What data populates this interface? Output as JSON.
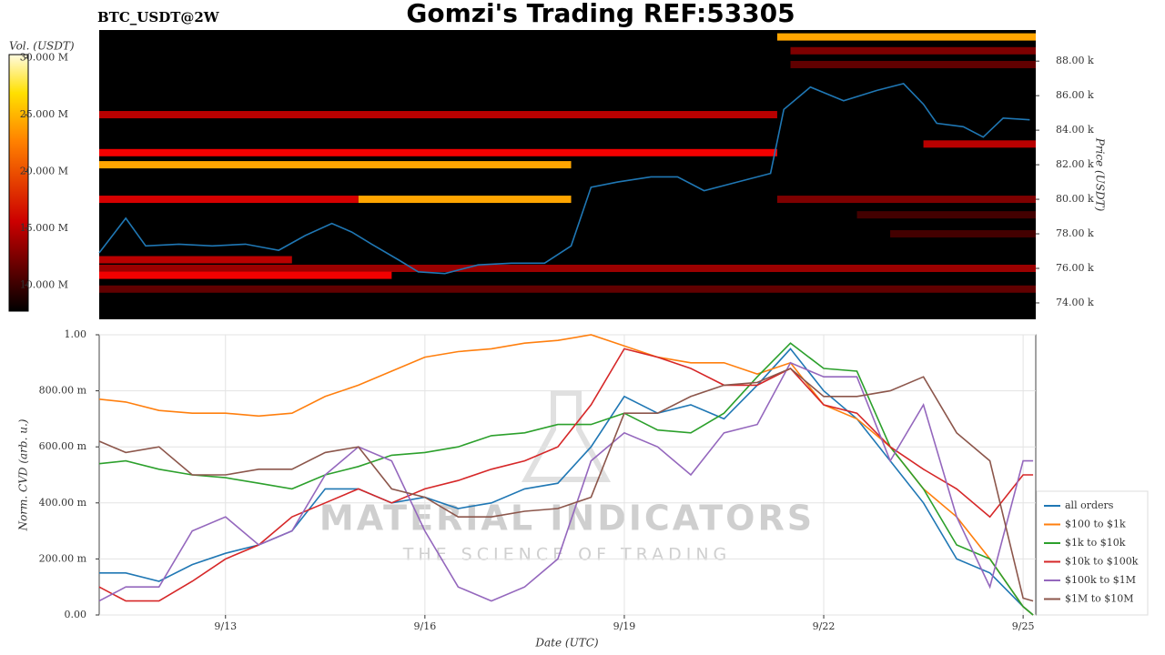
{
  "title": "Gomzi's Trading REF:53305",
  "watermark": {
    "name": "MATERIAL INDICATORS",
    "tagline": "THE SCIENCE OF TRADING"
  },
  "chart_data": [
    {
      "type": "heatmap",
      "title": "BTC_USDT@2W",
      "y_label": "Price (USDT)",
      "colorbar_label": "Vol. (USDT)",
      "xlim": [
        11.1,
        25.19
      ],
      "ylim": [
        73050,
        89800
      ],
      "yticks": [
        {
          "value": 74000,
          "label": "74.00 k"
        },
        {
          "value": 76000,
          "label": "76.00 k"
        },
        {
          "value": 78000,
          "label": "78.00 k"
        },
        {
          "value": 80000,
          "label": "80.00 k"
        },
        {
          "value": 82000,
          "label": "82.00 k"
        },
        {
          "value": 84000,
          "label": "84.00 k"
        },
        {
          "value": 86000,
          "label": "86.00 k"
        },
        {
          "value": 88000,
          "label": "88.00 k"
        }
      ],
      "colorbar_lim": [
        7.7,
        30.3
      ],
      "colorbar_ticks": [
        {
          "value": 10,
          "label": "10.000 M"
        },
        {
          "value": 15,
          "label": "15.000 M"
        },
        {
          "value": 20,
          "label": "20.000 M"
        },
        {
          "value": 25,
          "label": "25.000 M"
        },
        {
          "value": 30,
          "label": "30.000 M"
        }
      ],
      "levels": [
        {
          "price": 84900,
          "start": 11.1,
          "end": 21.3,
          "value": 14
        },
        {
          "price": 82700,
          "start": 11.1,
          "end": 21.3,
          "value": 16
        },
        {
          "price": 82000,
          "start": 11.1,
          "end": 18.2,
          "value": 22
        },
        {
          "price": 80000,
          "start": 11.1,
          "end": 15.0,
          "value": 15
        },
        {
          "price": 80000,
          "start": 15.0,
          "end": 18.2,
          "value": 22
        },
        {
          "price": 76500,
          "start": 11.1,
          "end": 14.0,
          "value": 14
        },
        {
          "price": 76000,
          "start": 11.1,
          "end": 25.19,
          "value": 13
        },
        {
          "price": 75600,
          "start": 11.1,
          "end": 15.5,
          "value": 16
        },
        {
          "price": 74800,
          "start": 11.1,
          "end": 25.19,
          "value": 11
        },
        {
          "price": 89400,
          "start": 21.3,
          "end": 25.19,
          "value": 22
        },
        {
          "price": 88600,
          "start": 21.5,
          "end": 25.19,
          "value": 12
        },
        {
          "price": 87800,
          "start": 21.5,
          "end": 25.19,
          "value": 11
        },
        {
          "price": 83200,
          "start": 23.5,
          "end": 25.19,
          "value": 14
        },
        {
          "price": 80000,
          "start": 21.3,
          "end": 25.19,
          "value": 12
        },
        {
          "price": 79100,
          "start": 22.5,
          "end": 25.19,
          "value": 10
        },
        {
          "price": 78000,
          "start": 23.0,
          "end": 25.19,
          "value": 10
        }
      ],
      "x": [
        11.1,
        11.5,
        11.8,
        12.3,
        12.8,
        13.3,
        13.8,
        14.2,
        14.6,
        14.9,
        15.2,
        15.6,
        15.9,
        16.3,
        16.8,
        17.3,
        17.8,
        18.2,
        18.5,
        18.9,
        19.4,
        19.8,
        20.2,
        20.7,
        21.2,
        21.4,
        21.8,
        22.3,
        22.8,
        23.2,
        23.5,
        23.7,
        24.1,
        24.4,
        24.7,
        25.1
      ],
      "series": [
        {
          "color": "#1f77b4",
          "values": [
            76900,
            78900,
            77300,
            77400,
            77300,
            77400,
            77050,
            77900,
            78600,
            78100,
            77400,
            76500,
            75800,
            75700,
            76200,
            76300,
            76300,
            77300,
            80700,
            81000,
            81300,
            81300,
            80500,
            81000,
            81500,
            85200,
            86500,
            85700,
            86300,
            86700,
            85500,
            84400,
            84200,
            83600,
            84700,
            84600
          ]
        }
      ]
    },
    {
      "type": "line",
      "x_label": "Date (UTC)",
      "y_label": "Norm. CVD (arb. u.)",
      "xlim": [
        11.1,
        25.19
      ],
      "ylim": [
        0,
        1
      ],
      "xticks": [
        {
          "value": 13,
          "label": "9/13"
        },
        {
          "value": 16,
          "label": "9/16"
        },
        {
          "value": 19,
          "label": "9/19"
        },
        {
          "value": 22,
          "label": "9/22"
        },
        {
          "value": 25,
          "label": "9/25"
        }
      ],
      "yticks": [
        {
          "value": 0,
          "label": "0.00"
        },
        {
          "value": 0.2,
          "label": "200.00 m"
        },
        {
          "value": 0.4,
          "label": "400.00 m"
        },
        {
          "value": 0.6,
          "label": "600.00 m"
        },
        {
          "value": 0.8,
          "label": "800.00 m"
        },
        {
          "value": 1,
          "label": "1.00"
        }
      ],
      "grid": true,
      "legend": "right",
      "x": [
        11.1,
        11.5,
        12,
        12.5,
        13,
        13.5,
        14,
        14.5,
        15,
        15.5,
        16,
        16.5,
        17,
        17.5,
        18,
        18.5,
        19,
        19.5,
        20,
        20.5,
        21,
        21.5,
        22,
        22.5,
        23,
        23.5,
        24,
        24.5,
        25,
        25.15
      ],
      "series": [
        {
          "name": "all orders",
          "color": "#1f77b4",
          "values": [
            0.15,
            0.15,
            0.12,
            0.18,
            0.22,
            0.25,
            0.3,
            0.45,
            0.45,
            0.4,
            0.42,
            0.38,
            0.4,
            0.45,
            0.47,
            0.6,
            0.78,
            0.72,
            0.75,
            0.7,
            0.82,
            0.95,
            0.8,
            0.7,
            0.55,
            0.4,
            0.2,
            0.15,
            0.03,
            0.0
          ]
        },
        {
          "name": "$100 to $1k",
          "color": "#ff7f0e",
          "values": [
            0.77,
            0.76,
            0.73,
            0.72,
            0.72,
            0.71,
            0.72,
            0.78,
            0.82,
            0.87,
            0.92,
            0.94,
            0.95,
            0.97,
            0.98,
            1.0,
            0.96,
            0.92,
            0.9,
            0.9,
            0.86,
            0.9,
            0.75,
            0.7,
            0.6,
            0.45,
            0.35,
            0.2,
            0.03,
            0.0
          ]
        },
        {
          "name": "$1k to $10k",
          "color": "#2ca02c",
          "values": [
            0.54,
            0.55,
            0.52,
            0.5,
            0.49,
            0.47,
            0.45,
            0.5,
            0.53,
            0.57,
            0.58,
            0.6,
            0.64,
            0.65,
            0.68,
            0.68,
            0.72,
            0.66,
            0.65,
            0.72,
            0.85,
            0.97,
            0.88,
            0.87,
            0.6,
            0.45,
            0.25,
            0.2,
            0.03,
            0.0
          ]
        },
        {
          "name": "$10k to $100k",
          "color": "#d62728",
          "values": [
            0.1,
            0.05,
            0.05,
            0.12,
            0.2,
            0.25,
            0.35,
            0.4,
            0.45,
            0.4,
            0.45,
            0.48,
            0.52,
            0.55,
            0.6,
            0.75,
            0.95,
            0.92,
            0.88,
            0.82,
            0.82,
            0.88,
            0.75,
            0.72,
            0.6,
            0.52,
            0.45,
            0.35,
            0.5,
            0.5
          ]
        },
        {
          "name": "$100k to $1M",
          "color": "#9467bd",
          "values": [
            0.05,
            0.1,
            0.1,
            0.3,
            0.35,
            0.25,
            0.3,
            0.5,
            0.6,
            0.55,
            0.3,
            0.1,
            0.05,
            0.1,
            0.2,
            0.55,
            0.65,
            0.6,
            0.5,
            0.65,
            0.68,
            0.9,
            0.85,
            0.85,
            0.55,
            0.75,
            0.35,
            0.1,
            0.55,
            0.55
          ]
        },
        {
          "name": "$1M to $10M",
          "color": "#8c564b",
          "values": [
            0.62,
            0.58,
            0.6,
            0.5,
            0.5,
            0.52,
            0.52,
            0.58,
            0.6,
            0.45,
            0.42,
            0.35,
            0.35,
            0.37,
            0.38,
            0.42,
            0.72,
            0.72,
            0.78,
            0.82,
            0.83,
            0.88,
            0.78,
            0.78,
            0.8,
            0.85,
            0.65,
            0.55,
            0.06,
            0.05
          ]
        }
      ]
    }
  ]
}
